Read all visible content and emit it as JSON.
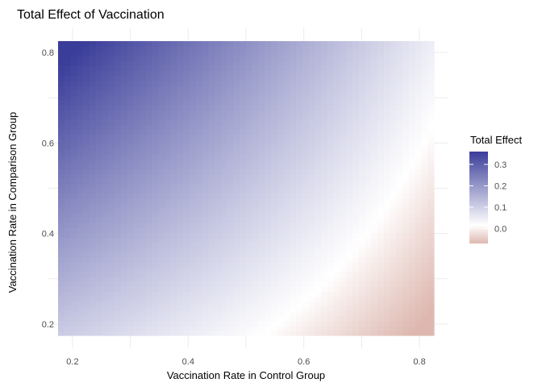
{
  "chart_data": {
    "type": "heatmap",
    "title": "Total Effect of Vaccination",
    "xlabel": "Vaccination Rate in Control Group",
    "ylabel": "Vaccination Rate in Comparison Group",
    "xlim": [
      0.175,
      0.825
    ],
    "ylim": [
      0.175,
      0.825
    ],
    "x_ticks": [
      0.2,
      0.4,
      0.6,
      0.8
    ],
    "y_ticks": [
      0.2,
      0.4,
      0.6,
      0.8
    ],
    "x_tick_labels": [
      "0.2",
      "0.4",
      "0.6",
      "0.8"
    ],
    "y_tick_labels": [
      "0.2",
      "0.4",
      "0.6",
      "0.8"
    ],
    "grid": true,
    "x_grid": [
      0.2,
      0.3,
      0.4,
      0.5,
      0.6,
      0.7,
      0.8
    ],
    "y_grid": [
      0.2,
      0.3,
      0.4,
      0.5,
      0.6,
      0.7,
      0.8
    ],
    "legend": {
      "title": "Total Effect",
      "position": "right",
      "ticks": [
        0.3,
        0.2,
        0.1,
        0.0
      ],
      "tick_labels": [
        "0.3",
        "0.2",
        "0.1",
        "0.0"
      ],
      "range": [
        -0.07,
        0.36
      ]
    },
    "corner_values": {
      "x0.2_y0.8": 0.36,
      "x0.8_y0.8": 0.04,
      "x0.2_y0.2": 0.1,
      "x0.8_y0.2": -0.07
    },
    "colors": {
      "high": "#3a3d99",
      "mid": "#ffffff",
      "low": "#deb8b0",
      "grid": "#ebebeb"
    }
  }
}
